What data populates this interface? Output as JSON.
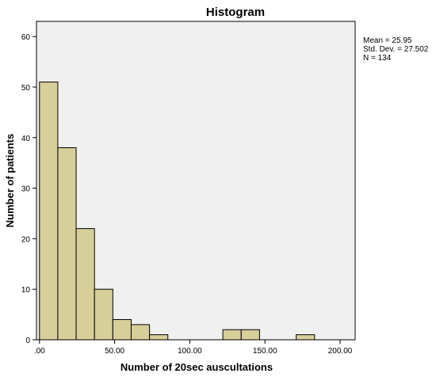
{
  "chart_data": {
    "type": "bar",
    "title": "Histogram",
    "xlabel": "Number of 20sec auscultations",
    "ylabel": "Number of patients",
    "xlim": [
      -2,
      210
    ],
    "ylim": [
      0,
      63
    ],
    "x_ticks": [
      ".00",
      "50.00",
      "100.00",
      "150.00",
      "200.00"
    ],
    "x_tick_values": [
      0,
      50,
      100,
      150,
      200
    ],
    "y_ticks": [
      "0",
      "10",
      "20",
      "30",
      "40",
      "50",
      "60"
    ],
    "y_tick_values": [
      0,
      10,
      20,
      30,
      40,
      50,
      60
    ],
    "bin_width": 12.2,
    "bins": [
      {
        "start": 0,
        "end": 12.2,
        "count": 51
      },
      {
        "start": 12.2,
        "end": 24.4,
        "count": 38
      },
      {
        "start": 24.4,
        "end": 36.6,
        "count": 22
      },
      {
        "start": 36.6,
        "end": 48.8,
        "count": 10
      },
      {
        "start": 48.8,
        "end": 61.0,
        "count": 4
      },
      {
        "start": 61.0,
        "end": 73.2,
        "count": 3
      },
      {
        "start": 73.2,
        "end": 85.4,
        "count": 1
      },
      {
        "start": 85.4,
        "end": 97.6,
        "count": 0
      },
      {
        "start": 97.6,
        "end": 109.8,
        "count": 0
      },
      {
        "start": 109.8,
        "end": 122.0,
        "count": 0
      },
      {
        "start": 122.0,
        "end": 134.2,
        "count": 2
      },
      {
        "start": 134.2,
        "end": 146.4,
        "count": 2
      },
      {
        "start": 146.4,
        "end": 158.6,
        "count": 0
      },
      {
        "start": 158.6,
        "end": 170.8,
        "count": 0
      },
      {
        "start": 170.8,
        "end": 183.0,
        "count": 1
      }
    ],
    "grid": false,
    "colors": {
      "bar_fill": "#d6cf9a",
      "plot_bg": "#f0f0f0",
      "bar_stroke": "#000000"
    },
    "stats": {
      "mean": "Mean = 25.95",
      "std_dev": "Std. Dev. = 27.502",
      "n": "N = 134"
    }
  }
}
